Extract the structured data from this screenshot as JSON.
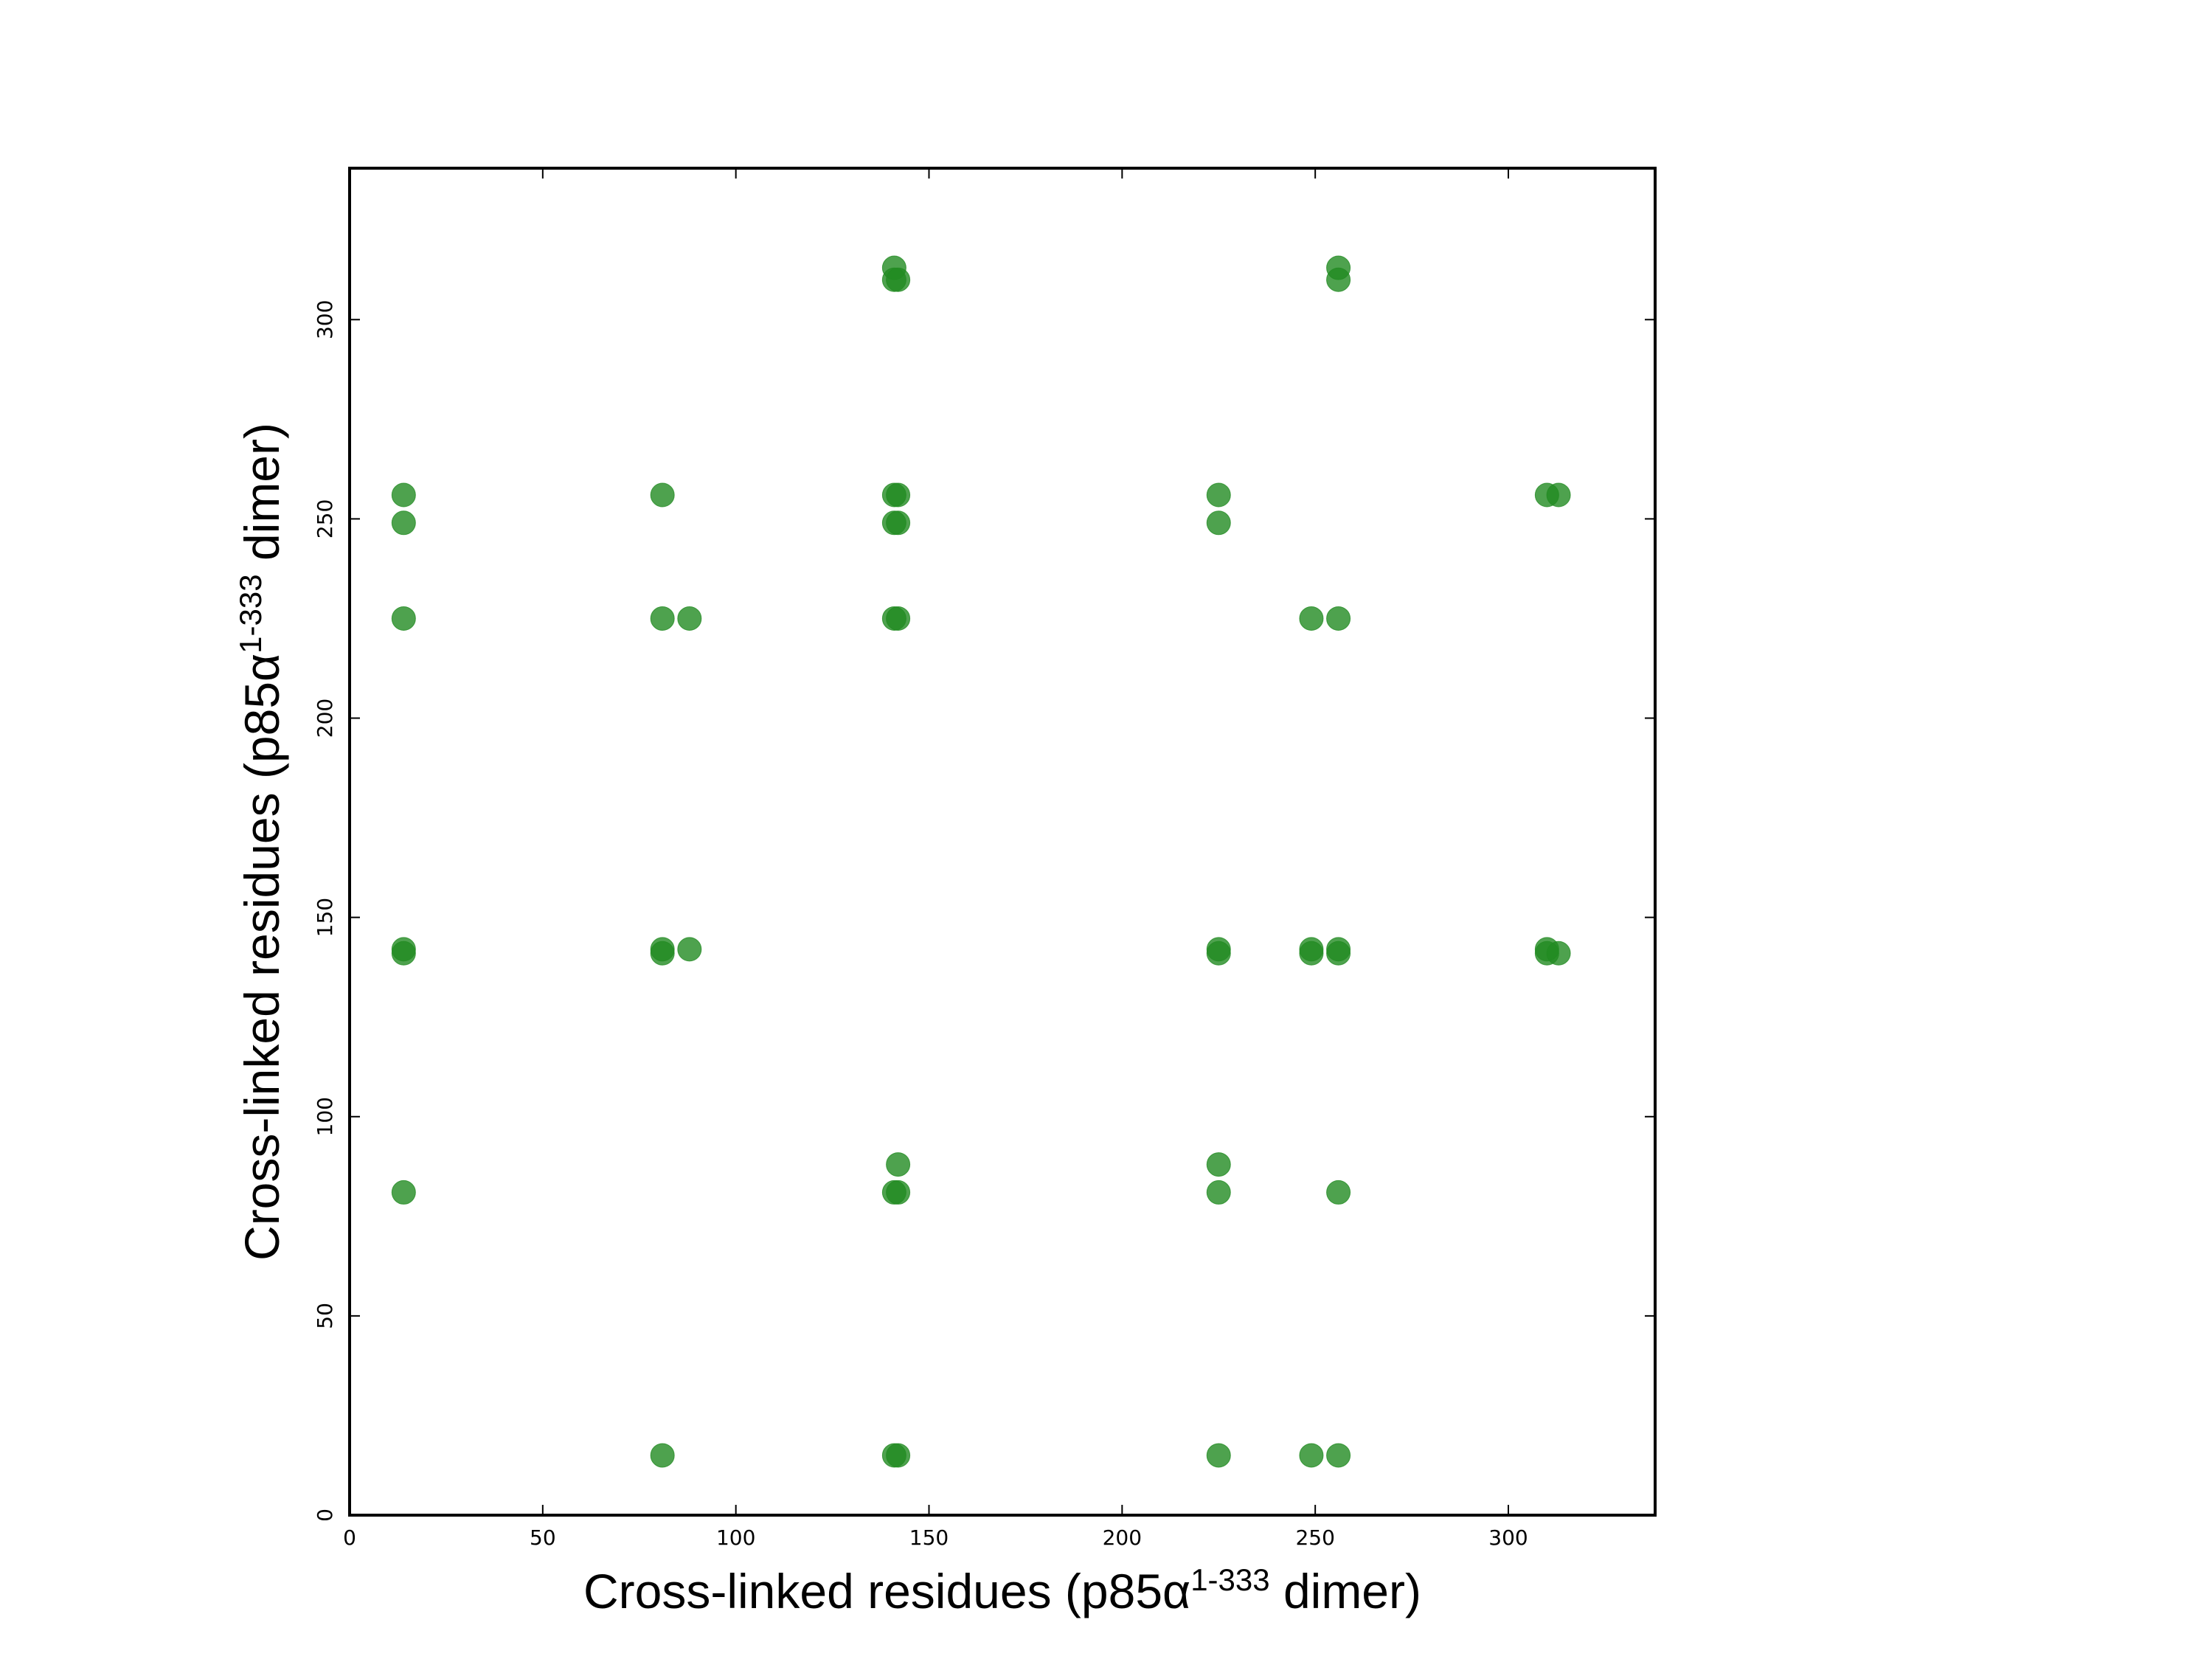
{
  "chart_data": {
    "type": "scatter",
    "title": "",
    "xlabel": {
      "pre": "Cross-linked residues (p85α",
      "sup": "1-333",
      "post": " dimer)"
    },
    "ylabel": {
      "pre": "Cross-linked residues (p85α",
      "sup": "1-333",
      "post": " dimer)"
    },
    "xlim": [
      0,
      338
    ],
    "ylim": [
      0,
      338
    ],
    "xticks": [
      0,
      50,
      100,
      150,
      200,
      250,
      300
    ],
    "yticks": [
      0,
      50,
      100,
      150,
      200,
      250,
      300
    ],
    "grid": false,
    "marker_color": "#228B22",
    "marker_opacity": 0.8,
    "points": [
      [
        141,
        313
      ],
      [
        256,
        313
      ],
      [
        141,
        310
      ],
      [
        142,
        310
      ],
      [
        256,
        310
      ],
      [
        14,
        256
      ],
      [
        81,
        256
      ],
      [
        141,
        256
      ],
      [
        142,
        256
      ],
      [
        225,
        256
      ],
      [
        310,
        256
      ],
      [
        313,
        256
      ],
      [
        14,
        249
      ],
      [
        141,
        249
      ],
      [
        142,
        249
      ],
      [
        225,
        249
      ],
      [
        14,
        225
      ],
      [
        81,
        225
      ],
      [
        88,
        225
      ],
      [
        141,
        225
      ],
      [
        142,
        225
      ],
      [
        249,
        225
      ],
      [
        256,
        225
      ],
      [
        14,
        142
      ],
      [
        81,
        142
      ],
      [
        88,
        142
      ],
      [
        225,
        142
      ],
      [
        249,
        142
      ],
      [
        256,
        142
      ],
      [
        310,
        142
      ],
      [
        14,
        141
      ],
      [
        81,
        141
      ],
      [
        225,
        141
      ],
      [
        249,
        141
      ],
      [
        256,
        141
      ],
      [
        310,
        141
      ],
      [
        313,
        141
      ],
      [
        142,
        88
      ],
      [
        225,
        88
      ],
      [
        14,
        81
      ],
      [
        141,
        81
      ],
      [
        142,
        81
      ],
      [
        225,
        81
      ],
      [
        256,
        81
      ],
      [
        81,
        15
      ],
      [
        141,
        15
      ],
      [
        142,
        15
      ],
      [
        225,
        15
      ],
      [
        249,
        15
      ],
      [
        256,
        15
      ]
    ]
  }
}
